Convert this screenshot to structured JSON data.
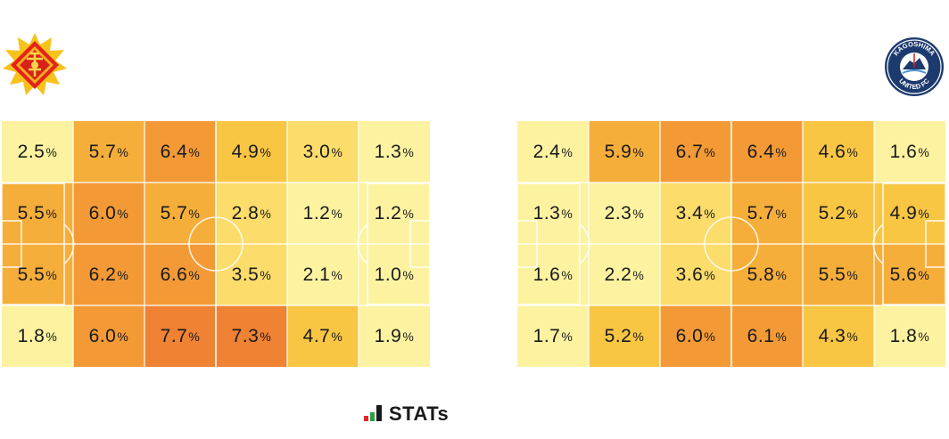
{
  "chart_data": [
    {
      "type": "heatmap",
      "team": "left",
      "rows": 4,
      "cols": 6,
      "values": [
        [
          2.5,
          5.7,
          6.4,
          4.9,
          3.0,
          1.3
        ],
        [
          5.5,
          6.0,
          5.7,
          2.8,
          1.2,
          1.2
        ],
        [
          5.5,
          6.2,
          6.6,
          3.5,
          2.1,
          1.0
        ],
        [
          1.8,
          6.0,
          7.7,
          7.3,
          4.7,
          1.9
        ]
      ],
      "labels": [
        [
          "2.5",
          "5.7",
          "6.4",
          "4.9",
          "3.0",
          "1.3"
        ],
        [
          "5.5",
          "6.0",
          "5.7",
          "2.8",
          "1.2",
          "1.2"
        ],
        [
          "5.5",
          "6.2",
          "6.6",
          "3.5",
          "2.1",
          "1.0"
        ],
        [
          "1.8",
          "6.0",
          "7.7",
          "7.3",
          "4.7",
          "1.9"
        ]
      ],
      "unit": "%"
    },
    {
      "type": "heatmap",
      "team": "right",
      "rows": 4,
      "cols": 6,
      "values": [
        [
          2.4,
          5.9,
          6.7,
          6.4,
          4.6,
          1.6
        ],
        [
          1.3,
          2.3,
          3.4,
          5.7,
          5.2,
          4.9
        ],
        [
          1.6,
          2.2,
          3.6,
          5.8,
          5.5,
          5.6
        ],
        [
          1.7,
          5.2,
          6.0,
          6.1,
          4.3,
          1.8
        ]
      ],
      "labels": [
        [
          "2.4",
          "5.9",
          "6.7",
          "6.4",
          "4.6",
          "1.6"
        ],
        [
          "1.3",
          "2.3",
          "3.4",
          "5.7",
          "5.2",
          "4.9"
        ],
        [
          "1.6",
          "2.2",
          "3.6",
          "5.8",
          "5.5",
          "5.6"
        ],
        [
          "1.7",
          "5.2",
          "6.0",
          "6.1",
          "4.3",
          "1.8"
        ]
      ],
      "unit": "%"
    }
  ],
  "logos": {
    "right_text_top": "KAGOSHIMA",
    "right_text_bottom": "UNITED FC"
  },
  "colors": {
    "scale": [
      "#fcf2a0",
      "#fcdc6a",
      "#f9c644",
      "#f6ae3a",
      "#f39a36",
      "#ef8233"
    ],
    "pitch_lines": "#ffffff",
    "brand_green": "#2e9e45",
    "brand_red": "#e3262b",
    "brand_dark": "#1a1a1a",
    "right_logo_navy": "#1d3a6e"
  },
  "brand": {
    "name": "STATs"
  }
}
